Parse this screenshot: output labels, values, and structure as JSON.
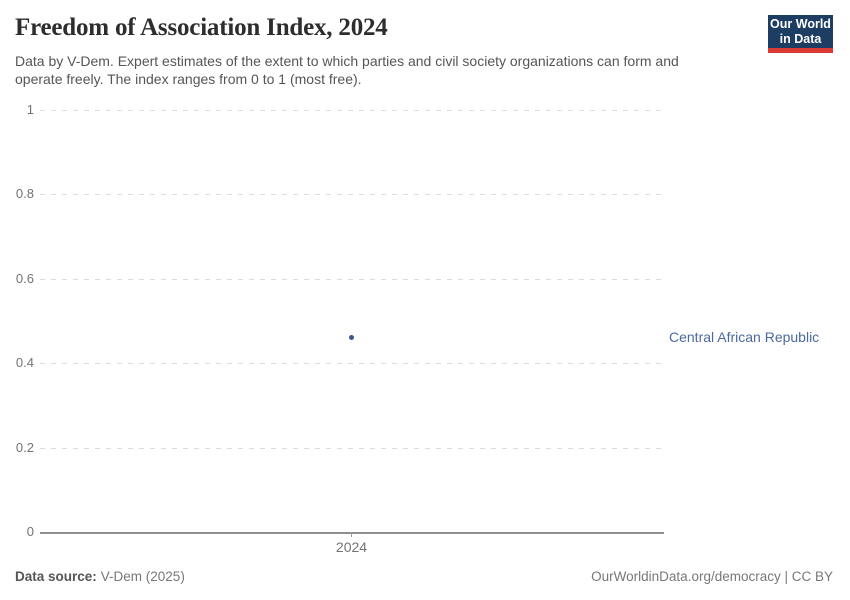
{
  "header": {
    "title": "Freedom of Association Index, 2024",
    "subtitle_lines": [
      "Data by V-Dem. Expert estimates of the extent to which parties and civil society organizations can form and",
      "operate freely. The index ranges from 0 to 1 (most free)."
    ]
  },
  "logo": {
    "line1": "Our World",
    "line2": "in Data",
    "bg_color": "#1d3d63",
    "accent_color": "#d93a34"
  },
  "chart_data": {
    "type": "scatter",
    "title": "Freedom of Association Index, 2024",
    "x": [
      2024
    ],
    "x_tick_labels": [
      "2024"
    ],
    "series": [
      {
        "name": "Central African Republic",
        "values": [
          0.46
        ],
        "color": "#3d548c",
        "label_color": "#4c6a9c"
      }
    ],
    "ylim": [
      0,
      1
    ],
    "yticks": [
      0,
      0.2,
      0.4,
      0.6,
      0.8,
      1
    ],
    "ytick_labels": [
      "0",
      "0.2",
      "0.4",
      "0.6",
      "0.8",
      "1"
    ],
    "grid": "dashed-horizontal",
    "xlabel": "",
    "ylabel": "",
    "legend_position": "right-of-point",
    "tick_color": "#737373",
    "gridline_color": "#dcdcdc",
    "axis_color": "#8f8f8f"
  },
  "footer": {
    "data_source_label": "Data source:",
    "data_source_value": "V-Dem (2025)",
    "credit": "OurWorldinData.org/democracy | CC BY"
  }
}
